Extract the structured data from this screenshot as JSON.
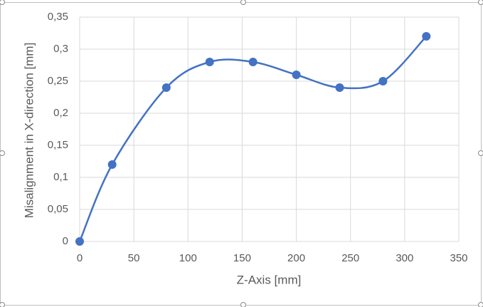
{
  "chart_data": {
    "type": "scatter",
    "smooth": true,
    "grid": true,
    "x_label": "Z-Axis [mm]",
    "y_label": "Misalignment in X-direction [mm]",
    "series": [
      {
        "color": "#4472c4",
        "x": [
          0,
          30,
          80,
          120,
          160,
          200,
          240,
          280,
          320
        ],
        "values": [
          0,
          0.12,
          0.24,
          0.28,
          0.28,
          0.26,
          0.24,
          0.25,
          0.32
        ]
      }
    ],
    "xlim": [
      0,
      350
    ],
    "xticks": [
      0,
      50,
      100,
      150,
      200,
      250,
      300,
      350
    ],
    "ylim": [
      0,
      0.35
    ],
    "yticks": [
      0,
      {
        "value": 0.05,
        "label": "0,05"
      },
      {
        "value": 0.1,
        "label": "0,1"
      },
      {
        "value": 0.15,
        "label": "0,15"
      },
      {
        "value": 0.2,
        "label": "0,2"
      },
      {
        "value": 0.25,
        "label": "0,25"
      },
      {
        "value": 0.3,
        "label": "0,3"
      },
      {
        "value": 0.35,
        "label": "0,35"
      }
    ]
  }
}
